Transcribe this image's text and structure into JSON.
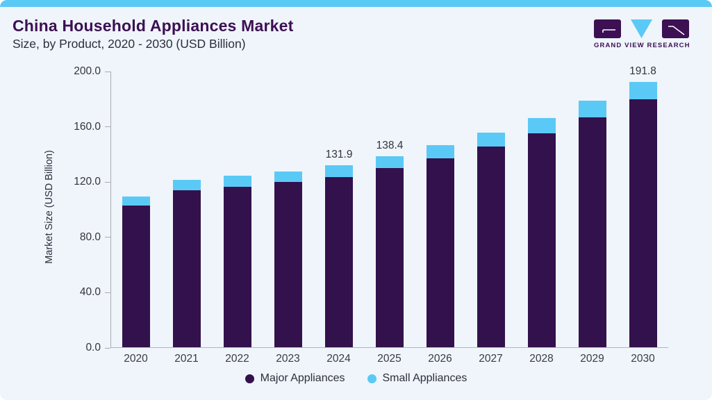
{
  "page": {
    "background": "#EFF5FA",
    "topbar_color": "#5BC9F5"
  },
  "header": {
    "title": "China Household Appliances Market",
    "subtitle": "Size, by Product, 2020 - 2030 (USD Billion)",
    "title_color": "#3C1053",
    "logo": {
      "text": "GRAND VIEW RESEARCH",
      "mark_purple": "#3C1053",
      "mark_blue": "#5BC9F5"
    }
  },
  "chart_data": {
    "type": "bar",
    "stacked": true,
    "title": "China Household Appliances Market Size, by Product, 2020 - 2030 (USD Billion)",
    "xlabel": "",
    "ylabel": "Market Size (USD Billion)",
    "ylim": [
      0,
      200
    ],
    "grid": false,
    "legend_position": "bottom",
    "ytick_values": [
      0,
      40,
      80,
      120,
      160,
      200
    ],
    "ytick_labels": [
      "0.0",
      "40.0",
      "80.0",
      "120.0",
      "160.0",
      "200.0"
    ],
    "categories": [
      "2020",
      "2021",
      "2022",
      "2023",
      "2024",
      "2025",
      "2026",
      "2027",
      "2028",
      "2029",
      "2030"
    ],
    "series": [
      {
        "name": "Major Appliances",
        "color": "#33114D",
        "values": [
          102.5,
          113.7,
          116.3,
          119.8,
          123.3,
          129.8,
          136.6,
          145.0,
          154.9,
          166.2,
          179.4
        ]
      },
      {
        "name": "Small Appliances",
        "color": "#5BC9F5",
        "values": [
          6.8,
          7.3,
          7.9,
          7.5,
          8.6,
          8.6,
          9.4,
          10.4,
          11.1,
          12.2,
          12.4
        ]
      }
    ],
    "totals": [
      109.3,
      121.0,
      124.2,
      127.3,
      131.9,
      138.4,
      146.0,
      155.4,
      166.0,
      178.4,
      191.8
    ],
    "data_labels": {
      "2024": "131.9",
      "2025": "138.4",
      "2030": "191.8"
    },
    "legend": [
      {
        "label": "Major Appliances",
        "color": "#33114D"
      },
      {
        "label": "Small Appliances",
        "color": "#5BC9F5"
      }
    ]
  }
}
